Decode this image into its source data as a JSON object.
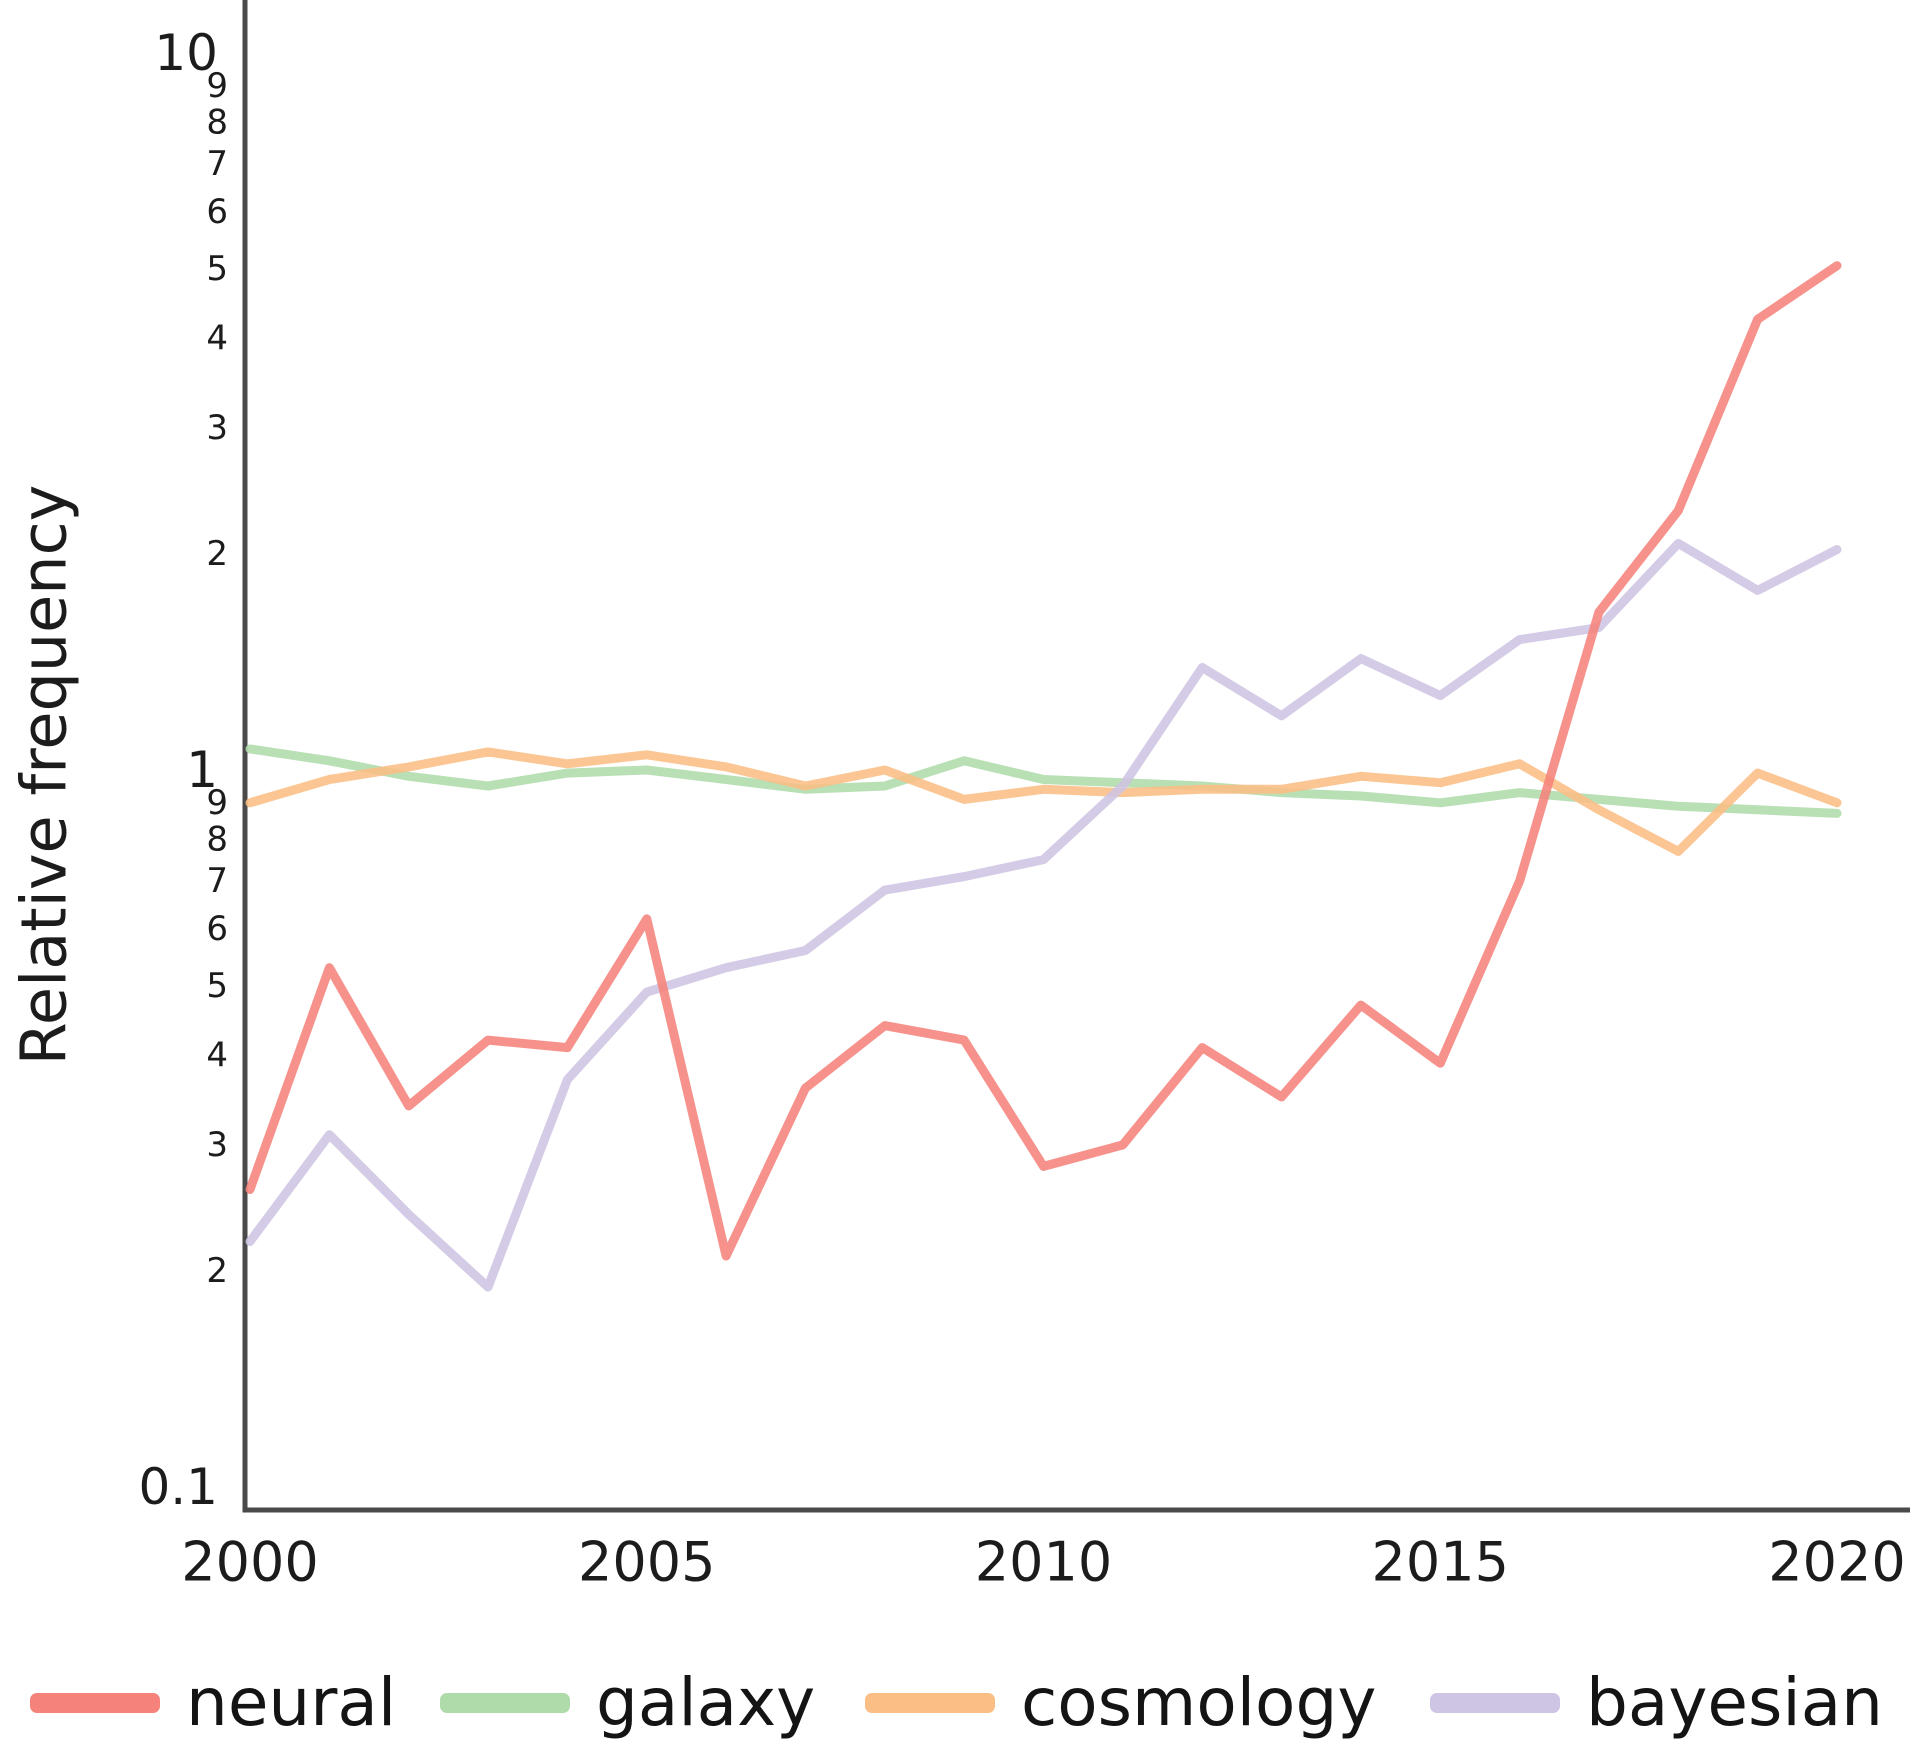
{
  "chart_data": {
    "type": "line",
    "title": "",
    "xlabel": "",
    "ylabel": "Relative frequency",
    "y_scale": "log",
    "ylim": [
      0.1,
      11.8
    ],
    "xlim": [
      2000,
      2020
    ],
    "grid": false,
    "x": [
      2000,
      2001,
      2002,
      2003,
      2004,
      2005,
      2006,
      2007,
      2008,
      2009,
      2010,
      2011,
      2012,
      2013,
      2014,
      2015,
      2016,
      2017,
      2018,
      2019,
      2020
    ],
    "x_ticks": [
      {
        "value": 2000,
        "label": "2000"
      },
      {
        "value": 2005,
        "label": "2005"
      },
      {
        "value": 2010,
        "label": "2010"
      },
      {
        "value": 2015,
        "label": "2015"
      },
      {
        "value": 2020,
        "label": "2020"
      }
    ],
    "y_major_ticks": [
      {
        "value": 10,
        "label": "10"
      },
      {
        "value": 1,
        "label": "1"
      },
      {
        "value": 0.1,
        "label": "0.1"
      }
    ],
    "y_minor_ticks": [
      {
        "value": 9,
        "label": "9"
      },
      {
        "value": 8,
        "label": "8"
      },
      {
        "value": 7,
        "label": "7"
      },
      {
        "value": 6,
        "label": "6"
      },
      {
        "value": 5,
        "label": "5"
      },
      {
        "value": 4,
        "label": "4"
      },
      {
        "value": 3,
        "label": "3"
      },
      {
        "value": 2,
        "label": "2"
      },
      {
        "value": 0.9,
        "label": "9"
      },
      {
        "value": 0.8,
        "label": "8"
      },
      {
        "value": 0.7,
        "label": "7"
      },
      {
        "value": 0.6,
        "label": "6"
      },
      {
        "value": 0.5,
        "label": "5"
      },
      {
        "value": 0.4,
        "label": "4"
      },
      {
        "value": 0.3,
        "label": "3"
      },
      {
        "value": 0.2,
        "label": "2"
      }
    ],
    "legend_position": "bottom",
    "series": [
      {
        "name": "neural",
        "color": "#F5837B",
        "values": [
          0.26,
          0.53,
          0.34,
          0.42,
          0.41,
          0.62,
          0.21,
          0.36,
          0.44,
          0.42,
          0.28,
          0.3,
          0.41,
          0.35,
          0.47,
          0.39,
          0.7,
          1.66,
          2.3,
          4.25,
          5.05
        ]
      },
      {
        "name": "galaxy",
        "color": "#AFDBAB",
        "values": [
          1.07,
          1.03,
          0.98,
          0.95,
          0.99,
          1.0,
          0.97,
          0.94,
          0.95,
          1.03,
          0.97,
          0.96,
          0.95,
          0.93,
          0.92,
          0.9,
          0.93,
          0.91,
          0.89,
          0.88,
          0.87
        ]
      },
      {
        "name": "cosmology",
        "color": "#FBBE85",
        "values": [
          0.9,
          0.97,
          1.01,
          1.06,
          1.02,
          1.05,
          1.01,
          0.95,
          1.0,
          0.91,
          0.94,
          0.93,
          0.94,
          0.94,
          0.98,
          0.96,
          1.02,
          0.88,
          0.77,
          0.99,
          0.9
        ]
      },
      {
        "name": "bayesian",
        "color": "#CEC4E3",
        "values": [
          0.22,
          0.31,
          0.24,
          0.19,
          0.37,
          0.49,
          0.53,
          0.56,
          0.68,
          0.71,
          0.75,
          0.95,
          1.39,
          1.19,
          1.43,
          1.27,
          1.52,
          1.58,
          2.07,
          1.78,
          2.03
        ]
      }
    ],
    "axis_color": "#4a4a4a",
    "text_color": "#1c1c1c"
  }
}
